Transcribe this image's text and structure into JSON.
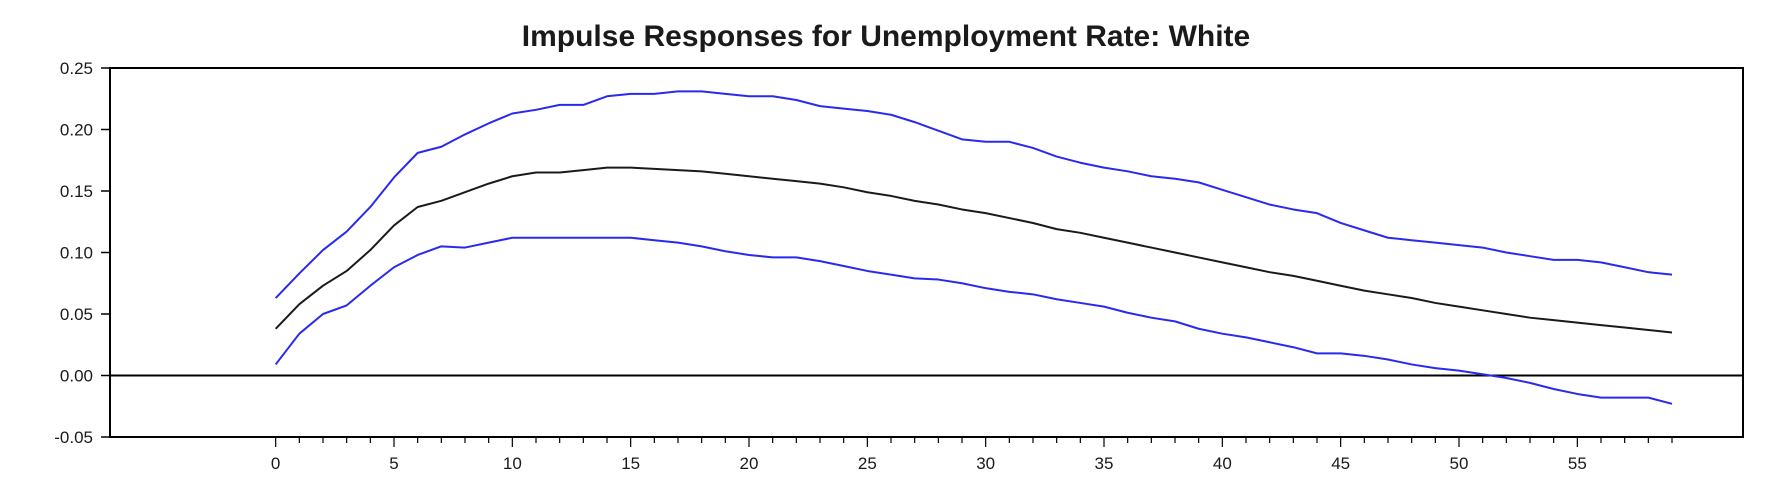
{
  "chart_data": {
    "type": "line",
    "title": "Impulse Responses for Unemployment Rate: White",
    "xlabel": "",
    "ylabel": "",
    "xlim": [
      -7,
      62
    ],
    "ylim": [
      -0.05,
      0.25
    ],
    "x_ticks": [
      0,
      5,
      10,
      15,
      20,
      25,
      30,
      35,
      40,
      45,
      50,
      55
    ],
    "y_ticks": [
      -0.05,
      0.0,
      0.05,
      0.1,
      0.15,
      0.2,
      0.25
    ],
    "y_tick_labels": [
      "-0.05",
      "0.00",
      "0.05",
      "0.10",
      "0.15",
      "0.20",
      "0.25"
    ],
    "grid": false,
    "legend": "none",
    "zero_line": true,
    "colors": {
      "band": "#2a2aee",
      "response": "#1a1a1a",
      "axis": "#000000"
    },
    "x": [
      0,
      1,
      2,
      3,
      4,
      5,
      6,
      7,
      8,
      9,
      10,
      11,
      12,
      13,
      14,
      15,
      16,
      17,
      18,
      19,
      20,
      21,
      22,
      23,
      24,
      25,
      26,
      27,
      28,
      29,
      30,
      31,
      32,
      33,
      34,
      35,
      36,
      37,
      38,
      39,
      40,
      41,
      42,
      43,
      44,
      45,
      46,
      47,
      48,
      49,
      50,
      51,
      52,
      53,
      54,
      55,
      56,
      57,
      58,
      59
    ],
    "series": [
      {
        "role": "upper",
        "values": [
          0.063,
          0.083,
          0.102,
          0.117,
          0.137,
          0.161,
          0.181,
          0.186,
          0.196,
          0.205,
          0.213,
          0.216,
          0.22,
          0.22,
          0.227,
          0.229,
          0.229,
          0.231,
          0.231,
          0.229,
          0.227,
          0.227,
          0.224,
          0.219,
          0.217,
          0.215,
          0.212,
          0.206,
          0.199,
          0.192,
          0.19,
          0.19,
          0.185,
          0.178,
          0.173,
          0.169,
          0.166,
          0.162,
          0.16,
          0.157,
          0.151,
          0.145,
          0.139,
          0.135,
          0.132,
          0.124,
          0.118,
          0.112,
          0.11,
          0.108,
          0.106,
          0.104,
          0.1,
          0.097,
          0.094,
          0.094,
          0.092,
          0.088,
          0.084,
          0.082
        ]
      },
      {
        "role": "response",
        "values": [
          0.038,
          0.058,
          0.073,
          0.085,
          0.102,
          0.122,
          0.137,
          0.142,
          0.149,
          0.156,
          0.162,
          0.165,
          0.165,
          0.167,
          0.169,
          0.169,
          0.168,
          0.167,
          0.166,
          0.164,
          0.162,
          0.16,
          0.158,
          0.156,
          0.153,
          0.149,
          0.146,
          0.142,
          0.139,
          0.135,
          0.132,
          0.128,
          0.124,
          0.119,
          0.116,
          0.112,
          0.108,
          0.104,
          0.1,
          0.096,
          0.092,
          0.088,
          0.084,
          0.081,
          0.077,
          0.073,
          0.069,
          0.066,
          0.063,
          0.059,
          0.056,
          0.053,
          0.05,
          0.047,
          0.045,
          0.043,
          0.041,
          0.039,
          0.037,
          0.035
        ]
      },
      {
        "role": "lower",
        "values": [
          0.009,
          0.034,
          0.05,
          0.057,
          0.073,
          0.088,
          0.098,
          0.105,
          0.104,
          0.108,
          0.112,
          0.112,
          0.112,
          0.112,
          0.112,
          0.112,
          0.11,
          0.108,
          0.105,
          0.101,
          0.098,
          0.096,
          0.096,
          0.093,
          0.089,
          0.085,
          0.082,
          0.079,
          0.078,
          0.075,
          0.071,
          0.068,
          0.066,
          0.062,
          0.059,
          0.056,
          0.051,
          0.047,
          0.044,
          0.038,
          0.034,
          0.031,
          0.027,
          0.023,
          0.018,
          0.018,
          0.016,
          0.013,
          0.009,
          0.006,
          0.004,
          0.001,
          -0.002,
          -0.006,
          -0.011,
          -0.015,
          -0.018,
          -0.018,
          -0.018,
          -0.023
        ]
      }
    ]
  }
}
